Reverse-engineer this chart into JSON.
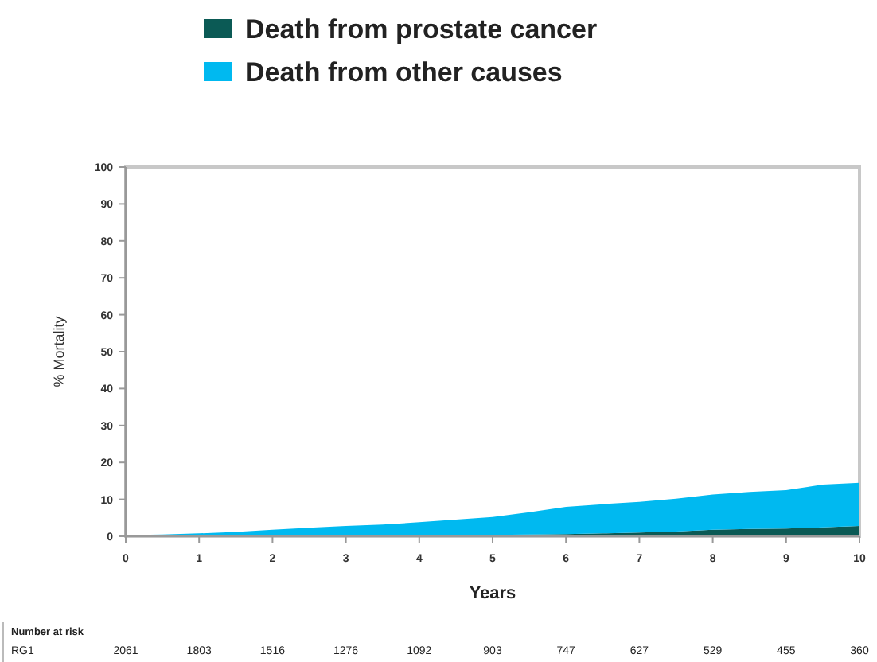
{
  "chart_data": {
    "type": "area",
    "stacked": true,
    "ylabel": "% Mortality",
    "xlabel": "Years",
    "x": [
      0,
      0.5,
      1,
      1.5,
      2,
      2.5,
      3,
      3.5,
      4,
      4.5,
      5,
      5.5,
      6,
      6.5,
      7,
      7.5,
      8,
      8.5,
      9,
      9.5,
      10
    ],
    "series": [
      {
        "name": "Death from prostate cancer",
        "color": "#0b5a55",
        "values": [
          0,
          0,
          0,
          0.1,
          0.1,
          0.1,
          0.1,
          0.2,
          0.2,
          0.3,
          0.4,
          0.5,
          0.6,
          0.8,
          1,
          1.3,
          1.8,
          2,
          2.1,
          2.4,
          2.8
        ]
      },
      {
        "name": "Death from other causes",
        "color": "#00b9f0",
        "values": [
          0.3,
          0.5,
          0.8,
          1.1,
          1.7,
          2.2,
          2.7,
          3,
          3.6,
          4.2,
          4.8,
          6,
          7.4,
          7.9,
          8.3,
          8.9,
          9.5,
          10,
          10.4,
          11.6,
          11.7
        ]
      }
    ],
    "xlim": [
      0,
      10
    ],
    "xticks": [
      0,
      1,
      2,
      3,
      4,
      5,
      6,
      7,
      8,
      9,
      10
    ],
    "ylim": [
      0,
      100
    ],
    "yticks": [
      0,
      10,
      20,
      30,
      40,
      50,
      60,
      70,
      80,
      90,
      100
    ],
    "legend": "top left",
    "annotations": [
      "Number at risk",
      "RG1",
      "2061",
      "1803",
      "1516",
      "1276",
      "1092",
      "903",
      "747",
      "627",
      "529",
      "455",
      "360"
    ]
  }
}
